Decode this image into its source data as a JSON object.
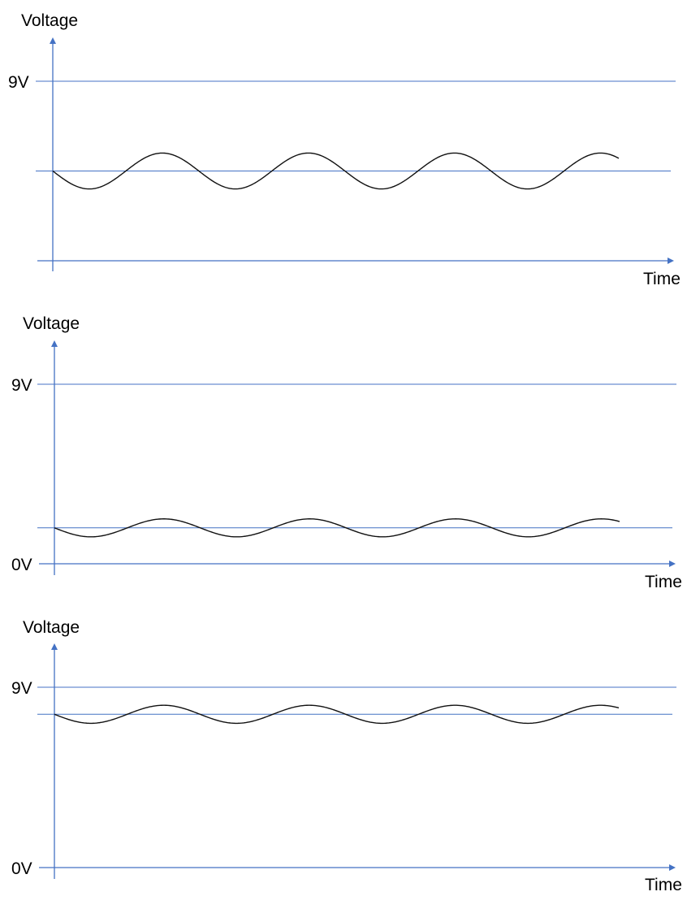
{
  "colors": {
    "axis": "#4472c4",
    "wave": "#111111",
    "text": "#000000"
  },
  "panels": [
    {
      "id": "top",
      "y_label": "Voltage",
      "x_label": "Time",
      "top_label": "9V",
      "bottom_label": "",
      "dc_level_fraction_of_9v": 0.5,
      "ripple": {
        "cycles": 4,
        "amplitude_fraction_of_9v": 0.1,
        "starts_falling": true
      }
    },
    {
      "id": "middle",
      "y_label": "Voltage",
      "x_label": "Time",
      "top_label": "9V",
      "bottom_label": "0V",
      "dc_level_fraction_of_9v": 0.2,
      "ripple": {
        "cycles": 4,
        "amplitude_fraction_of_9v": 0.05,
        "starts_falling": true
      }
    },
    {
      "id": "bottom",
      "y_label": "Voltage",
      "x_label": "Time",
      "top_label": "9V",
      "bottom_label": "0V",
      "dc_level_fraction_of_9v": 0.85,
      "ripple": {
        "cycles": 4,
        "amplitude_fraction_of_9v": 0.05,
        "starts_falling": true
      }
    }
  ]
}
